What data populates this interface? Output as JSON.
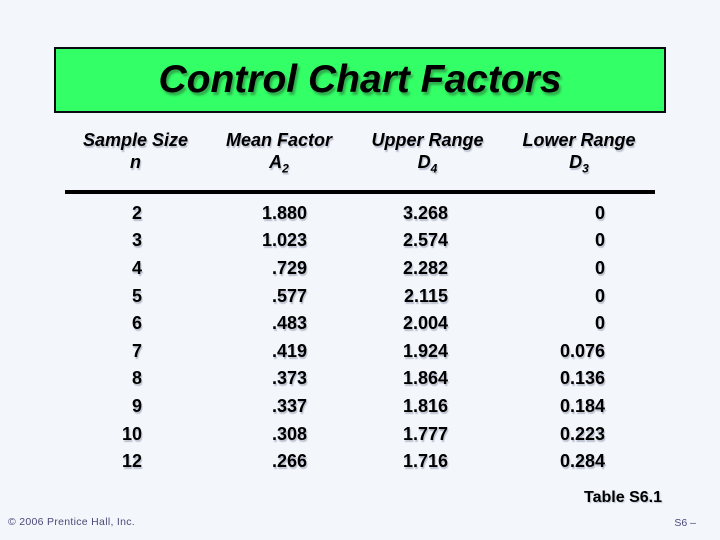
{
  "slide": {
    "title": "Control Chart Factors",
    "caption": "Table S6.1",
    "footer": {
      "copyright": "© 2006 Prentice Hall, Inc.",
      "slide_number": "S6 –"
    },
    "colors": {
      "background": "#F3F6FB",
      "title_bg": "#33FF66",
      "title_border": "#0A0A14",
      "text": "#000000",
      "footer_text": "#4A4A78"
    }
  },
  "chart_data": {
    "type": "table",
    "title": "Control Chart Factors",
    "caption": "Table S6.1",
    "columns": [
      {
        "label": "Sample Size",
        "symbol": "n",
        "sub": ""
      },
      {
        "label": "Mean Factor",
        "symbol": "A",
        "sub": "2"
      },
      {
        "label": "Upper Range",
        "symbol": "D",
        "sub": "4"
      },
      {
        "label": "Lower Range",
        "symbol": "D",
        "sub": "3"
      }
    ],
    "rows": [
      [
        "2",
        "1.880",
        "3.268",
        "0"
      ],
      [
        "3",
        "1.023",
        "2.574",
        "0"
      ],
      [
        "4",
        ".729",
        "2.282",
        "0"
      ],
      [
        "5",
        ".577",
        "2.115",
        "0"
      ],
      [
        "6",
        ".483",
        "2.004",
        "0"
      ],
      [
        "7",
        ".419",
        "1.924",
        "0.076"
      ],
      [
        "8",
        ".373",
        "1.864",
        "0.136"
      ],
      [
        "9",
        ".337",
        "1.816",
        "0.184"
      ],
      [
        "10",
        ".308",
        "1.777",
        "0.223"
      ],
      [
        "12",
        ".266",
        "1.716",
        "0.284"
      ]
    ]
  }
}
